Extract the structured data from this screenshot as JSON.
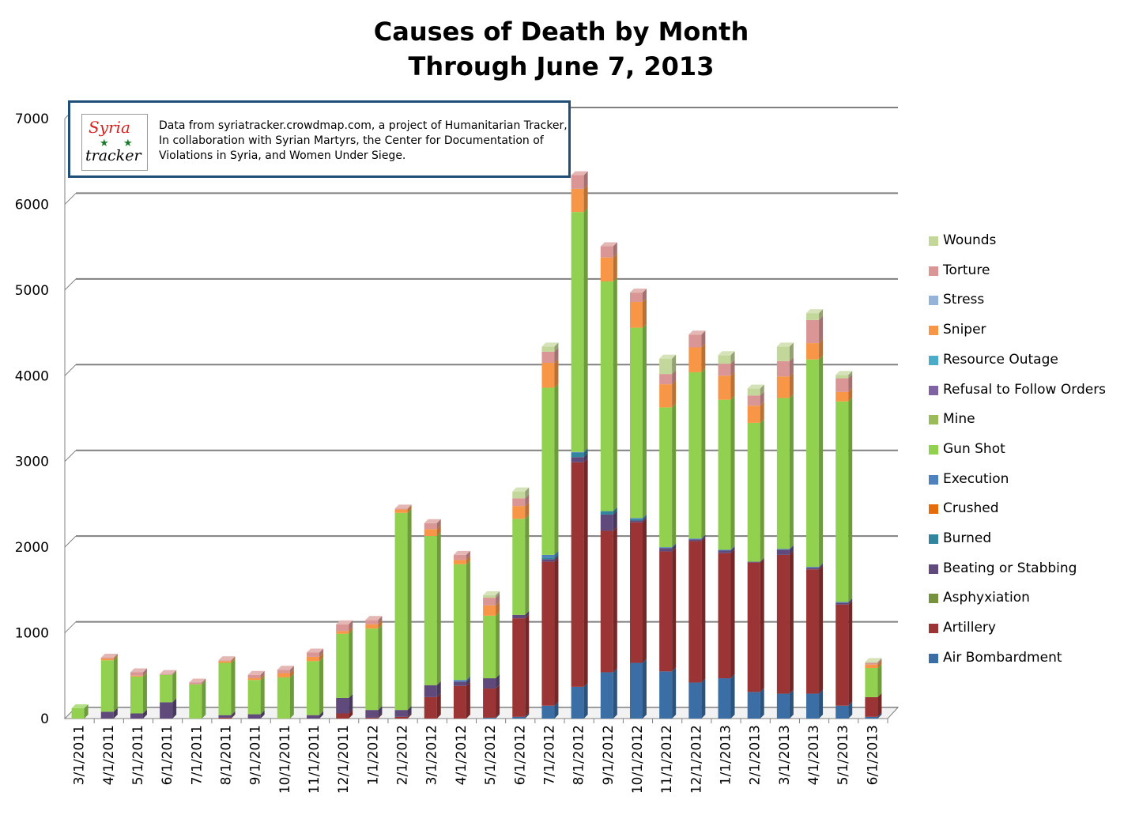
{
  "title_line1": "Causes of Death by Month",
  "title_line2": "Through June 7, 2013",
  "note": {
    "logo_top": "Syria",
    "logo_bottom": "tracker",
    "text": "Data from syriatracker.crowdmap.com, a project of Humanitarian Tracker, In collaboration with Syrian Martyrs, the Center for Documentation of Violations in Syria, and Women Under Siege."
  },
  "chart_data": {
    "type": "bar",
    "stacked": true,
    "three_d": true,
    "ylim": [
      0,
      7000
    ],
    "yticks": [
      0,
      1000,
      2000,
      3000,
      4000,
      5000,
      6000,
      7000
    ],
    "grid": true,
    "legend_position": "right",
    "categories": [
      "3/1/2011",
      "4/1/2011",
      "5/1/2011",
      "6/1/2011",
      "7/1/2011",
      "8/1/2011",
      "9/1/2011",
      "10/1/2011",
      "11/1/2011",
      "12/1/2011",
      "1/1/2012",
      "2/1/2012",
      "3/1/2012",
      "4/1/2012",
      "5/1/2012",
      "6/1/2012",
      "7/1/2012",
      "8/1/2012",
      "9/1/2012",
      "10/1/2012",
      "11/1/2012",
      "12/1/2012",
      "1/1/2013",
      "2/1/2013",
      "3/1/2013",
      "4/1/2013",
      "5/1/2013",
      "6/1/2013"
    ],
    "series": [
      {
        "name": "Air Bombardment",
        "color": "#3a6ea5",
        "values": [
          0,
          0,
          0,
          0,
          0,
          0,
          0,
          0,
          0,
          0,
          0,
          0,
          0,
          0,
          10,
          20,
          150,
          370,
          540,
          650,
          550,
          420,
          470,
          310,
          290,
          290,
          150,
          20
        ]
      },
      {
        "name": "Artillery",
        "color": "#9b3434",
        "values": [
          0,
          0,
          0,
          0,
          0,
          10,
          0,
          0,
          0,
          60,
          10,
          20,
          250,
          380,
          340,
          1150,
          1680,
          2620,
          1650,
          1640,
          1400,
          1650,
          1460,
          1510,
          1620,
          1450,
          1180,
          230
        ]
      },
      {
        "name": "Asphyxiation",
        "color": "#76923c",
        "values": [
          0,
          0,
          0,
          0,
          0,
          0,
          0,
          0,
          0,
          0,
          0,
          0,
          0,
          0,
          0,
          0,
          0,
          0,
          0,
          0,
          0,
          0,
          0,
          0,
          0,
          0,
          0,
          0
        ]
      },
      {
        "name": "Beating or Stabbing",
        "color": "#604a7b",
        "values": [
          0,
          80,
          60,
          190,
          0,
          30,
          50,
          0,
          40,
          180,
          90,
          80,
          140,
          50,
          120,
          40,
          30,
          60,
          190,
          20,
          40,
          20,
          30,
          10,
          60,
          20,
          20,
          0
        ]
      },
      {
        "name": "Burned",
        "color": "#31859c",
        "values": [
          0,
          0,
          0,
          0,
          0,
          0,
          0,
          0,
          0,
          0,
          0,
          0,
          0,
          0,
          0,
          0,
          20,
          50,
          40,
          20,
          0,
          0,
          0,
          0,
          0,
          0,
          0,
          0
        ]
      },
      {
        "name": "Crushed",
        "color": "#e46c0a",
        "values": [
          0,
          0,
          0,
          0,
          0,
          0,
          0,
          0,
          0,
          0,
          0,
          0,
          0,
          0,
          0,
          0,
          0,
          0,
          0,
          0,
          0,
          0,
          0,
          0,
          0,
          0,
          0,
          0
        ]
      },
      {
        "name": "Execution",
        "color": "#4f81bd",
        "values": [
          0,
          0,
          0,
          0,
          0,
          0,
          0,
          0,
          0,
          0,
          0,
          0,
          0,
          20,
          0,
          0,
          30,
          10,
          0,
          10,
          10,
          10,
          10,
          0,
          10,
          10,
          10,
          0
        ]
      },
      {
        "name": "Gun Shot",
        "color": "#92d050",
        "values": [
          120,
          600,
          430,
          320,
          400,
          610,
          400,
          480,
          630,
          750,
          950,
          2300,
          1740,
          1350,
          730,
          1120,
          1950,
          2800,
          2680,
          2220,
          1630,
          1940,
          1750,
          1620,
          1760,
          2420,
          2340,
          340
        ]
      },
      {
        "name": "Mine",
        "color": "#9bbb59",
        "values": [
          0,
          0,
          0,
          0,
          0,
          0,
          0,
          0,
          0,
          0,
          0,
          0,
          0,
          0,
          0,
          0,
          0,
          0,
          0,
          0,
          0,
          0,
          0,
          0,
          0,
          0,
          0,
          0
        ]
      },
      {
        "name": "Refusal to Follow Orders",
        "color": "#8064a2",
        "values": [
          0,
          0,
          0,
          0,
          0,
          0,
          0,
          0,
          0,
          0,
          0,
          0,
          0,
          0,
          0,
          0,
          0,
          0,
          0,
          0,
          0,
          0,
          0,
          0,
          0,
          0,
          0,
          0
        ]
      },
      {
        "name": "Resource Outage",
        "color": "#4bacc6",
        "values": [
          0,
          0,
          0,
          0,
          0,
          0,
          0,
          0,
          0,
          0,
          0,
          0,
          0,
          0,
          0,
          0,
          0,
          0,
          0,
          0,
          0,
          0,
          0,
          0,
          0,
          0,
          0,
          0
        ]
      },
      {
        "name": "Sniper",
        "color": "#f79646",
        "values": [
          0,
          20,
          10,
          0,
          0,
          20,
          20,
          50,
          50,
          30,
          50,
          40,
          80,
          50,
          120,
          150,
          290,
          270,
          280,
          300,
          270,
          290,
          280,
          200,
          250,
          190,
          110,
          40
        ]
      },
      {
        "name": "Stress",
        "color": "#95b3d7",
        "values": [
          0,
          0,
          0,
          0,
          0,
          0,
          0,
          0,
          0,
          0,
          0,
          0,
          0,
          0,
          0,
          0,
          0,
          0,
          0,
          0,
          0,
          0,
          0,
          0,
          0,
          0,
          0,
          0
        ]
      },
      {
        "name": "Torture",
        "color": "#d99694",
        "values": [
          0,
          10,
          40,
          10,
          20,
          10,
          40,
          40,
          50,
          80,
          50,
          10,
          70,
          60,
          90,
          90,
          130,
          160,
          130,
          110,
          120,
          150,
          140,
          120,
          180,
          270,
          160,
          20
        ]
      },
      {
        "name": "Wounds",
        "color": "#c4d79b",
        "values": [
          0,
          0,
          0,
          0,
          0,
          0,
          0,
          0,
          0,
          0,
          0,
          0,
          0,
          0,
          30,
          80,
          60,
          0,
          0,
          0,
          180,
          0,
          100,
          80,
          170,
          80,
          40,
          10
        ]
      }
    ]
  }
}
